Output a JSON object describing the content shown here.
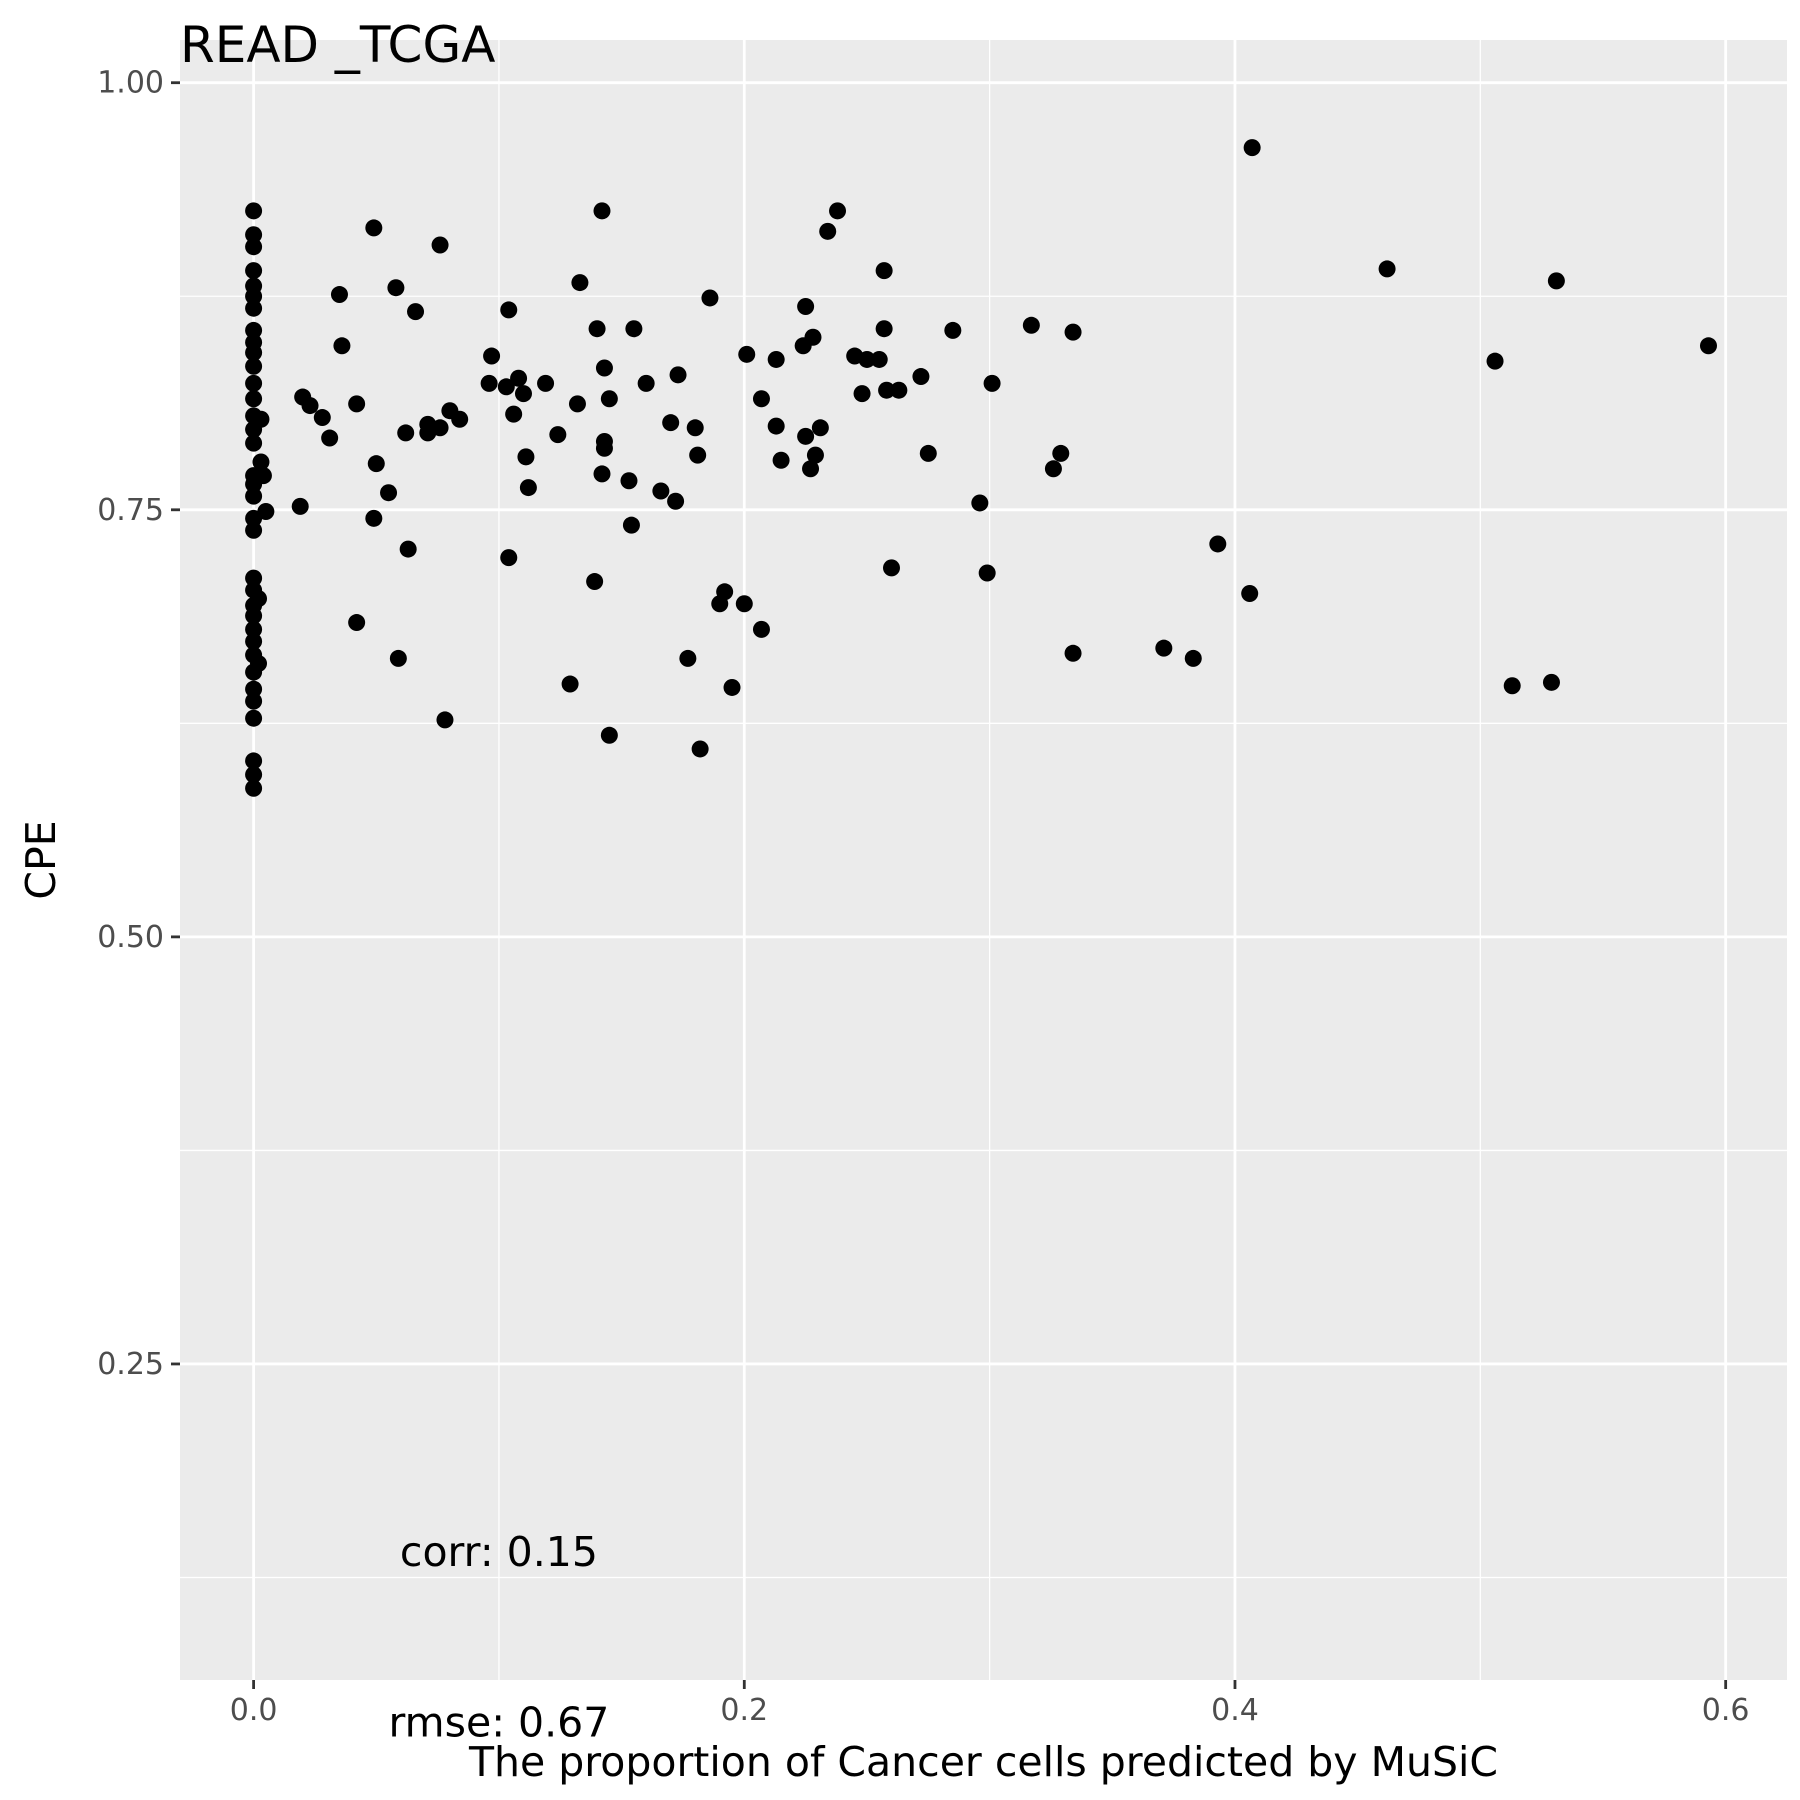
{
  "chart_data": {
    "type": "scatter",
    "title": "READ _TCGA",
    "xlabel": "The proportion of Cancer cells predicted by MuSiC",
    "ylabel": "CPE",
    "xlim": [
      -0.03,
      0.625
    ],
    "ylim": [
      0.065,
      1.025
    ],
    "x_ticks": [
      0.0,
      0.2,
      0.4,
      0.6
    ],
    "x_tick_labels": [
      "0.0",
      "0.2",
      "0.4",
      "0.6"
    ],
    "y_ticks": [
      0.25,
      0.5,
      0.75,
      1.0
    ],
    "y_tick_labels": [
      "0.25",
      "0.50",
      "0.75",
      "1.00"
    ],
    "grid": true,
    "background": "#ebebeb",
    "grid_color": "#ffffff",
    "point_color": "#000000",
    "annotations": [
      {
        "text": "corr: 0.15",
        "x": 0.1,
        "y": 0.14
      },
      {
        "text": "rmse: 0.67",
        "x": 0.1,
        "y": 0.04
      }
    ],
    "points": [
      [
        0.0,
        0.925
      ],
      [
        0.0,
        0.911
      ],
      [
        0.0,
        0.904
      ],
      [
        0.0,
        0.89
      ],
      [
        0.0,
        0.881
      ],
      [
        0.0,
        0.875
      ],
      [
        0.0,
        0.868
      ],
      [
        0.0,
        0.855
      ],
      [
        0.0,
        0.848
      ],
      [
        0.0,
        0.842
      ],
      [
        0.0,
        0.834
      ],
      [
        0.0,
        0.824
      ],
      [
        0.0,
        0.815
      ],
      [
        0.0,
        0.805
      ],
      [
        0.0,
        0.797
      ],
      [
        0.0,
        0.789
      ],
      [
        0.0,
        0.77
      ],
      [
        0.0,
        0.765
      ],
      [
        0.0,
        0.758
      ],
      [
        0.0,
        0.745
      ],
      [
        0.0,
        0.738
      ],
      [
        0.0,
        0.71
      ],
      [
        0.0,
        0.703
      ],
      [
        0.0,
        0.694
      ],
      [
        0.0,
        0.688
      ],
      [
        0.0,
        0.68
      ],
      [
        0.0,
        0.673
      ],
      [
        0.0,
        0.665
      ],
      [
        0.0,
        0.655
      ],
      [
        0.0,
        0.645
      ],
      [
        0.0,
        0.638
      ],
      [
        0.0,
        0.628
      ],
      [
        0.0,
        0.603
      ],
      [
        0.0,
        0.595
      ],
      [
        0.0,
        0.587
      ],
      [
        0.002,
        0.698
      ],
      [
        0.002,
        0.66
      ],
      [
        0.003,
        0.778
      ],
      [
        0.003,
        0.803
      ],
      [
        0.004,
        0.77
      ],
      [
        0.005,
        0.749
      ],
      [
        0.019,
        0.752
      ],
      [
        0.02,
        0.816
      ],
      [
        0.023,
        0.811
      ],
      [
        0.028,
        0.804
      ],
      [
        0.031,
        0.792
      ],
      [
        0.035,
        0.876
      ],
      [
        0.036,
        0.846
      ],
      [
        0.042,
        0.812
      ],
      [
        0.042,
        0.684
      ],
      [
        0.049,
        0.745
      ],
      [
        0.049,
        0.915
      ],
      [
        0.05,
        0.777
      ],
      [
        0.055,
        0.76
      ],
      [
        0.058,
        0.88
      ],
      [
        0.059,
        0.663
      ],
      [
        0.062,
        0.795
      ],
      [
        0.063,
        0.727
      ],
      [
        0.066,
        0.866
      ],
      [
        0.071,
        0.8
      ],
      [
        0.071,
        0.795
      ],
      [
        0.076,
        0.905
      ],
      [
        0.076,
        0.798
      ],
      [
        0.078,
        0.627
      ],
      [
        0.08,
        0.808
      ],
      [
        0.084,
        0.803
      ],
      [
        0.096,
        0.824
      ],
      [
        0.097,
        0.84
      ],
      [
        0.103,
        0.822
      ],
      [
        0.104,
        0.867
      ],
      [
        0.104,
        0.722
      ],
      [
        0.106,
        0.806
      ],
      [
        0.108,
        0.827
      ],
      [
        0.11,
        0.818
      ],
      [
        0.111,
        0.781
      ],
      [
        0.112,
        0.763
      ],
      [
        0.119,
        0.824
      ],
      [
        0.124,
        0.794
      ],
      [
        0.129,
        0.648
      ],
      [
        0.132,
        0.812
      ],
      [
        0.133,
        0.883
      ],
      [
        0.139,
        0.708
      ],
      [
        0.14,
        0.856
      ],
      [
        0.142,
        0.925
      ],
      [
        0.142,
        0.771
      ],
      [
        0.143,
        0.79
      ],
      [
        0.143,
        0.786
      ],
      [
        0.143,
        0.833
      ],
      [
        0.145,
        0.815
      ],
      [
        0.145,
        0.618
      ],
      [
        0.153,
        0.767
      ],
      [
        0.154,
        0.741
      ],
      [
        0.155,
        0.856
      ],
      [
        0.16,
        0.824
      ],
      [
        0.166,
        0.761
      ],
      [
        0.17,
        0.801
      ],
      [
        0.172,
        0.755
      ],
      [
        0.173,
        0.829
      ],
      [
        0.177,
        0.663
      ],
      [
        0.18,
        0.798
      ],
      [
        0.181,
        0.782
      ],
      [
        0.182,
        0.61
      ],
      [
        0.186,
        0.874
      ],
      [
        0.19,
        0.695
      ],
      [
        0.192,
        0.702
      ],
      [
        0.195,
        0.646
      ],
      [
        0.2,
        0.695
      ],
      [
        0.201,
        0.841
      ],
      [
        0.207,
        0.815
      ],
      [
        0.207,
        0.68
      ],
      [
        0.213,
        0.799
      ],
      [
        0.213,
        0.838
      ],
      [
        0.215,
        0.779
      ],
      [
        0.224,
        0.846
      ],
      [
        0.225,
        0.869
      ],
      [
        0.225,
        0.793
      ],
      [
        0.227,
        0.774
      ],
      [
        0.228,
        0.851
      ],
      [
        0.229,
        0.782
      ],
      [
        0.231,
        0.798
      ],
      [
        0.234,
        0.913
      ],
      [
        0.238,
        0.925
      ],
      [
        0.245,
        0.84
      ],
      [
        0.248,
        0.818
      ],
      [
        0.25,
        0.838
      ],
      [
        0.255,
        0.838
      ],
      [
        0.257,
        0.89
      ],
      [
        0.257,
        0.856
      ],
      [
        0.258,
        0.82
      ],
      [
        0.26,
        0.716
      ],
      [
        0.263,
        0.82
      ],
      [
        0.272,
        0.828
      ],
      [
        0.275,
        0.783
      ],
      [
        0.285,
        0.855
      ],
      [
        0.296,
        0.754
      ],
      [
        0.299,
        0.713
      ],
      [
        0.301,
        0.824
      ],
      [
        0.317,
        0.858
      ],
      [
        0.326,
        0.774
      ],
      [
        0.329,
        0.783
      ],
      [
        0.334,
        0.854
      ],
      [
        0.334,
        0.666
      ],
      [
        0.371,
        0.669
      ],
      [
        0.383,
        0.663
      ],
      [
        0.393,
        0.73
      ],
      [
        0.406,
        0.701
      ],
      [
        0.407,
        0.962
      ],
      [
        0.462,
        0.891
      ],
      [
        0.506,
        0.837
      ],
      [
        0.513,
        0.647
      ],
      [
        0.529,
        0.649
      ],
      [
        0.531,
        0.884
      ],
      [
        0.593,
        0.846
      ]
    ]
  }
}
